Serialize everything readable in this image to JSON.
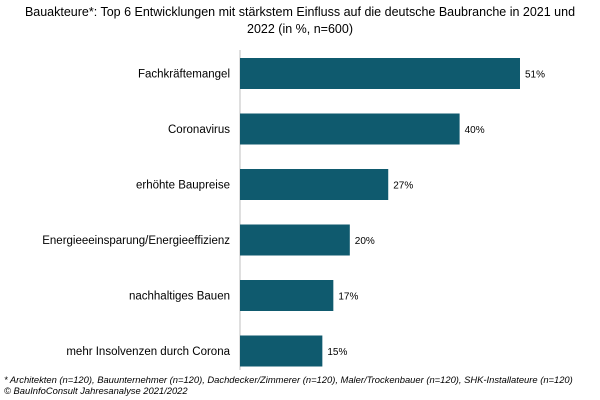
{
  "title_line1": "Bauakteure*: Top 6 Entwicklungen mit stärkstem Einfluss auf die deutsche Baubranche in 2021 und",
  "title_line2": "2022 (in %, n=600)",
  "footnote": "* Architekten (n=120), Bauunternehmer (n=120), Dachdecker/Zimmerer (n=120), Maler/Trockenbauer (n=120), SHK-Installateure (n=120)",
  "source": "© BauInfoConsult Jahresanalyse 2021/2022",
  "colors": {
    "bar": "#0f5a6e"
  },
  "chart_data": {
    "type": "bar",
    "orientation": "horizontal",
    "categories": [
      "Fachkräftemangel",
      "Coronavirus",
      "erhöhte Baupreise",
      "Energieeeinsparung/Energieeffizienz",
      "nachhaltiges Bauen",
      "mehr Insolvenzen durch Corona"
    ],
    "values": [
      51,
      40,
      27,
      20,
      17,
      15
    ],
    "value_labels": [
      "51%",
      "40%",
      "27%",
      "20%",
      "17%",
      "15%"
    ],
    "unit": "%",
    "xlim": [
      0,
      51
    ],
    "grid": false,
    "legend": "none"
  }
}
